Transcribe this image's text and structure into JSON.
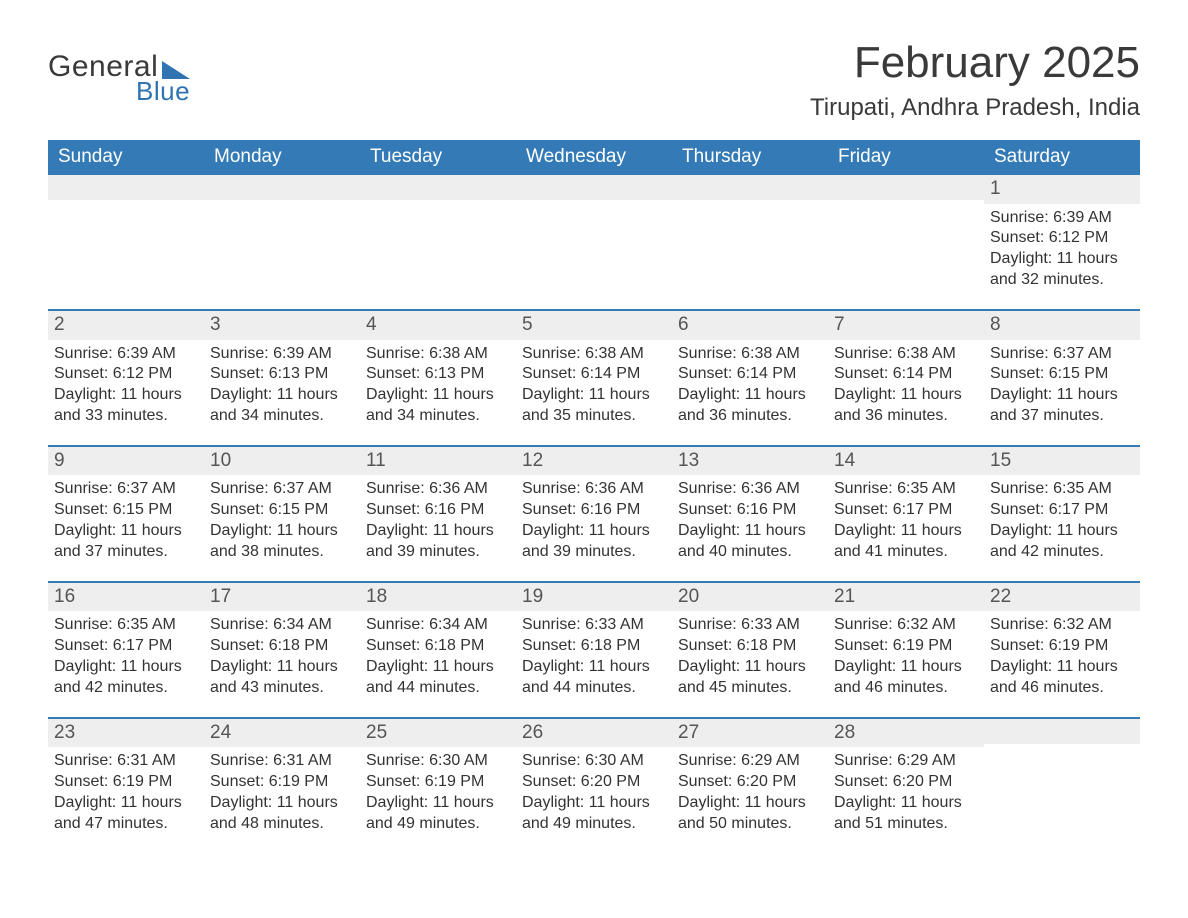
{
  "logo": {
    "general": "General",
    "blue": "Blue"
  },
  "title": "February 2025",
  "location": "Tirupati, Andhra Pradesh, India",
  "styling": {
    "header_bg": "#337ab7",
    "header_text": "#ffffff",
    "accent_color": "#2f73b3",
    "daynum_bg": "#eeeeee",
    "daynum_color": "#555555",
    "body_text": "#333333",
    "page_bg": "#ffffff",
    "title_fontsize": 44,
    "location_fontsize": 24,
    "weekday_fontsize": 19,
    "body_fontsize": 16,
    "border_width": 2
  },
  "weekdays": [
    "Sunday",
    "Monday",
    "Tuesday",
    "Wednesday",
    "Thursday",
    "Friday",
    "Saturday"
  ],
  "labels": {
    "sunrise": "Sunrise: ",
    "sunset": "Sunset: ",
    "daylight": "Daylight: "
  },
  "weeks": [
    [
      null,
      null,
      null,
      null,
      null,
      null,
      {
        "n": "1",
        "sr": "6:39 AM",
        "ss": "6:12 PM",
        "dl": "11 hours and 32 minutes."
      }
    ],
    [
      {
        "n": "2",
        "sr": "6:39 AM",
        "ss": "6:12 PM",
        "dl": "11 hours and 33 minutes."
      },
      {
        "n": "3",
        "sr": "6:39 AM",
        "ss": "6:13 PM",
        "dl": "11 hours and 34 minutes."
      },
      {
        "n": "4",
        "sr": "6:38 AM",
        "ss": "6:13 PM",
        "dl": "11 hours and 34 minutes."
      },
      {
        "n": "5",
        "sr": "6:38 AM",
        "ss": "6:14 PM",
        "dl": "11 hours and 35 minutes."
      },
      {
        "n": "6",
        "sr": "6:38 AM",
        "ss": "6:14 PM",
        "dl": "11 hours and 36 minutes."
      },
      {
        "n": "7",
        "sr": "6:38 AM",
        "ss": "6:14 PM",
        "dl": "11 hours and 36 minutes."
      },
      {
        "n": "8",
        "sr": "6:37 AM",
        "ss": "6:15 PM",
        "dl": "11 hours and 37 minutes."
      }
    ],
    [
      {
        "n": "9",
        "sr": "6:37 AM",
        "ss": "6:15 PM",
        "dl": "11 hours and 37 minutes."
      },
      {
        "n": "10",
        "sr": "6:37 AM",
        "ss": "6:15 PM",
        "dl": "11 hours and 38 minutes."
      },
      {
        "n": "11",
        "sr": "6:36 AM",
        "ss": "6:16 PM",
        "dl": "11 hours and 39 minutes."
      },
      {
        "n": "12",
        "sr": "6:36 AM",
        "ss": "6:16 PM",
        "dl": "11 hours and 39 minutes."
      },
      {
        "n": "13",
        "sr": "6:36 AM",
        "ss": "6:16 PM",
        "dl": "11 hours and 40 minutes."
      },
      {
        "n": "14",
        "sr": "6:35 AM",
        "ss": "6:17 PM",
        "dl": "11 hours and 41 minutes."
      },
      {
        "n": "15",
        "sr": "6:35 AM",
        "ss": "6:17 PM",
        "dl": "11 hours and 42 minutes."
      }
    ],
    [
      {
        "n": "16",
        "sr": "6:35 AM",
        "ss": "6:17 PM",
        "dl": "11 hours and 42 minutes."
      },
      {
        "n": "17",
        "sr": "6:34 AM",
        "ss": "6:18 PM",
        "dl": "11 hours and 43 minutes."
      },
      {
        "n": "18",
        "sr": "6:34 AM",
        "ss": "6:18 PM",
        "dl": "11 hours and 44 minutes."
      },
      {
        "n": "19",
        "sr": "6:33 AM",
        "ss": "6:18 PM",
        "dl": "11 hours and 44 minutes."
      },
      {
        "n": "20",
        "sr": "6:33 AM",
        "ss": "6:18 PM",
        "dl": "11 hours and 45 minutes."
      },
      {
        "n": "21",
        "sr": "6:32 AM",
        "ss": "6:19 PM",
        "dl": "11 hours and 46 minutes."
      },
      {
        "n": "22",
        "sr": "6:32 AM",
        "ss": "6:19 PM",
        "dl": "11 hours and 46 minutes."
      }
    ],
    [
      {
        "n": "23",
        "sr": "6:31 AM",
        "ss": "6:19 PM",
        "dl": "11 hours and 47 minutes."
      },
      {
        "n": "24",
        "sr": "6:31 AM",
        "ss": "6:19 PM",
        "dl": "11 hours and 48 minutes."
      },
      {
        "n": "25",
        "sr": "6:30 AM",
        "ss": "6:19 PM",
        "dl": "11 hours and 49 minutes."
      },
      {
        "n": "26",
        "sr": "6:30 AM",
        "ss": "6:20 PM",
        "dl": "11 hours and 49 minutes."
      },
      {
        "n": "27",
        "sr": "6:29 AM",
        "ss": "6:20 PM",
        "dl": "11 hours and 50 minutes."
      },
      {
        "n": "28",
        "sr": "6:29 AM",
        "ss": "6:20 PM",
        "dl": "11 hours and 51 minutes."
      },
      null
    ]
  ]
}
